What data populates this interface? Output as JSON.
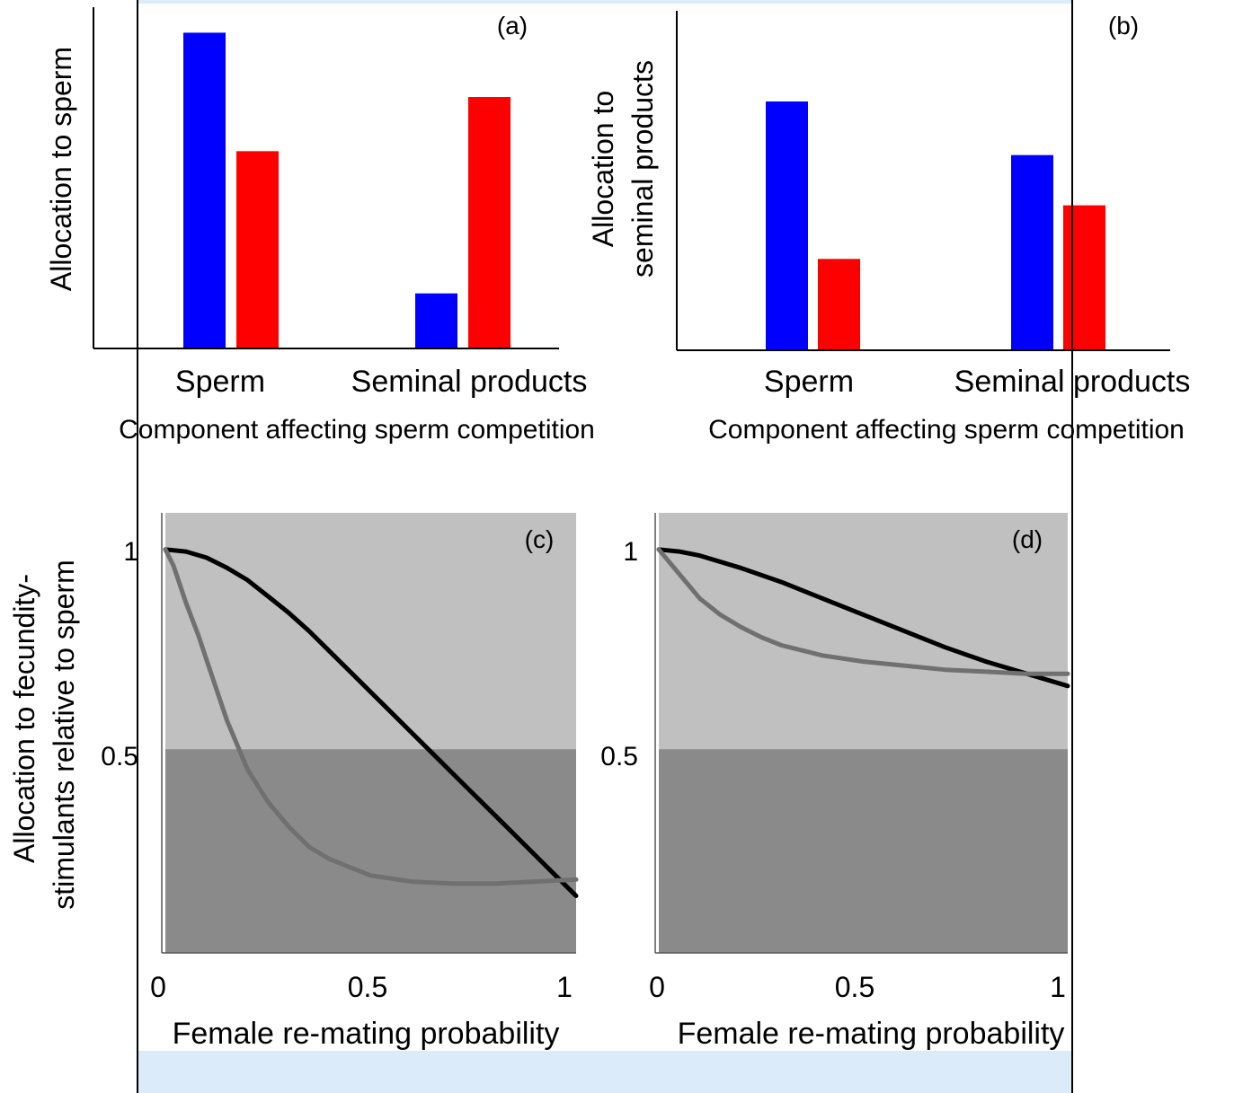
{
  "colors": {
    "series_a": "#0000ff",
    "series_b": "#ff0000",
    "plot_light": "#c0c0c0",
    "plot_dark": "#8a8a8a",
    "curve_dark": "#000000",
    "curve_grey": "#707070",
    "overlay": "#dcebfa"
  },
  "chart_data": [
    {
      "panel": "(a)",
      "type": "bar",
      "ylabel": "Allocation to sperm",
      "xlabel": "Component affecting sperm competition",
      "categories": [
        "Sperm",
        "Seminal products"
      ],
      "series": [
        {
          "values": [
            0.93,
            0.58
          ],
          "color": "#0000ff"
        },
        {
          "values": [
            0.16,
            0.74
          ],
          "color": "#ff0000"
        }
      ],
      "values_by_category": [
        [
          0.93,
          0.58
        ],
        [
          0.16,
          0.74
        ]
      ],
      "ylim": [
        0,
        1
      ]
    },
    {
      "panel": "(b)",
      "type": "bar",
      "ylabel_lines": [
        "Allocation to",
        "seminal products"
      ],
      "xlabel": "Component affecting sperm competition",
      "categories": [
        "Sperm",
        "Seminal products"
      ],
      "values_by_category": [
        [
          0.74,
          0.27
        ],
        [
          0.58,
          0.43
        ]
      ],
      "ylim": [
        0,
        1
      ]
    },
    {
      "panel": "(c)",
      "type": "line",
      "xlabel": "Female re-mating probability",
      "x_ticks": [
        "0",
        "0.5",
        "1"
      ],
      "y_ticks": [
        "1",
        "0.5"
      ],
      "xlim": [
        0,
        1
      ],
      "ylim": [
        0,
        1.08
      ],
      "band_split": 0.5,
      "series": [
        {
          "x": [
            0,
            0.05,
            0.1,
            0.15,
            0.2,
            0.25,
            0.3,
            0.35,
            0.4,
            0.45,
            0.5,
            0.55,
            0.6,
            0.65,
            0.7,
            0.75,
            0.8,
            0.85,
            0.9,
            0.95,
            1.0
          ],
          "y": [
            0.99,
            0.985,
            0.97,
            0.945,
            0.915,
            0.875,
            0.835,
            0.79,
            0.74,
            0.69,
            0.64,
            0.59,
            0.54,
            0.49,
            0.44,
            0.39,
            0.34,
            0.29,
            0.24,
            0.19,
            0.14
          ],
          "color": "#000000"
        },
        {
          "x": [
            0,
            0.02,
            0.05,
            0.08,
            0.1,
            0.15,
            0.2,
            0.25,
            0.3,
            0.35,
            0.4,
            0.5,
            0.6,
            0.7,
            0.8,
            0.9,
            1.0
          ],
          "y": [
            0.99,
            0.95,
            0.86,
            0.78,
            0.72,
            0.57,
            0.45,
            0.37,
            0.31,
            0.26,
            0.23,
            0.19,
            0.175,
            0.17,
            0.17,
            0.175,
            0.18
          ],
          "color": "#707070"
        }
      ]
    },
    {
      "panel": "(d)",
      "type": "line",
      "xlabel": "Female re-mating probability",
      "x_ticks": [
        "0",
        "0.5",
        "1"
      ],
      "y_ticks": [
        "1",
        "0.5"
      ],
      "xlim": [
        0,
        1
      ],
      "ylim": [
        0,
        1.08
      ],
      "band_split": 0.5,
      "series": [
        {
          "x": [
            0,
            0.05,
            0.1,
            0.2,
            0.3,
            0.4,
            0.5,
            0.6,
            0.7,
            0.8,
            0.9,
            1.0
          ],
          "y": [
            0.99,
            0.985,
            0.975,
            0.945,
            0.91,
            0.87,
            0.83,
            0.79,
            0.75,
            0.715,
            0.685,
            0.655
          ],
          "color": "#000000"
        },
        {
          "x": [
            0,
            0.05,
            0.1,
            0.15,
            0.2,
            0.25,
            0.3,
            0.4,
            0.5,
            0.6,
            0.7,
            0.8,
            0.9,
            1.0
          ],
          "y": [
            0.99,
            0.93,
            0.87,
            0.83,
            0.8,
            0.775,
            0.755,
            0.73,
            0.715,
            0.705,
            0.695,
            0.69,
            0.685,
            0.685
          ],
          "color": "#707070"
        }
      ]
    }
  ],
  "shared": {
    "ylabel_cd_lines": [
      "Allocation to fecundity-",
      "stimulants relative to sperm"
    ]
  }
}
